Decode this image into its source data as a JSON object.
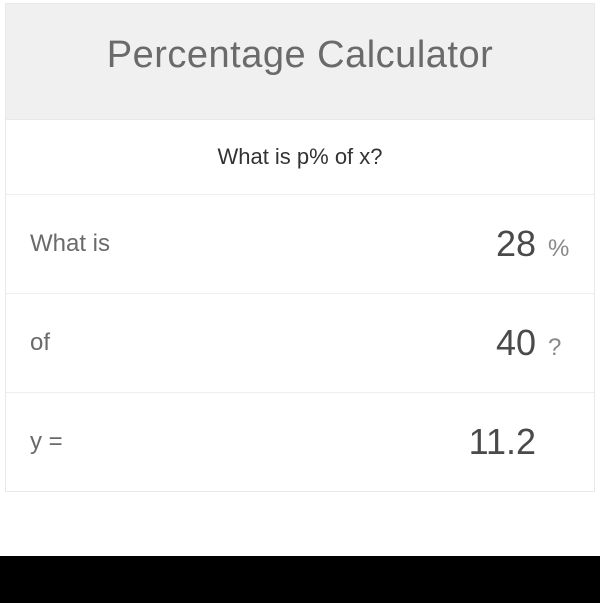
{
  "header": {
    "title": "Percentage Calculator"
  },
  "question": "What is p% of x?",
  "rows": {
    "whatIs": {
      "label": "What is",
      "value": "28",
      "suffix": "%"
    },
    "of": {
      "label": "of",
      "value": "40",
      "suffix": "?"
    },
    "result": {
      "label": "y =",
      "value": "11.2",
      "suffix": ""
    }
  },
  "colors": {
    "headerBg": "#f0f0f0",
    "headerText": "#6a6a6a",
    "questionText": "#333333",
    "labelText": "#6a6a6a",
    "valueText": "#4a4a4a",
    "suffixText": "#888888",
    "border": "#eeeeee",
    "bottomBar": "#000000"
  }
}
